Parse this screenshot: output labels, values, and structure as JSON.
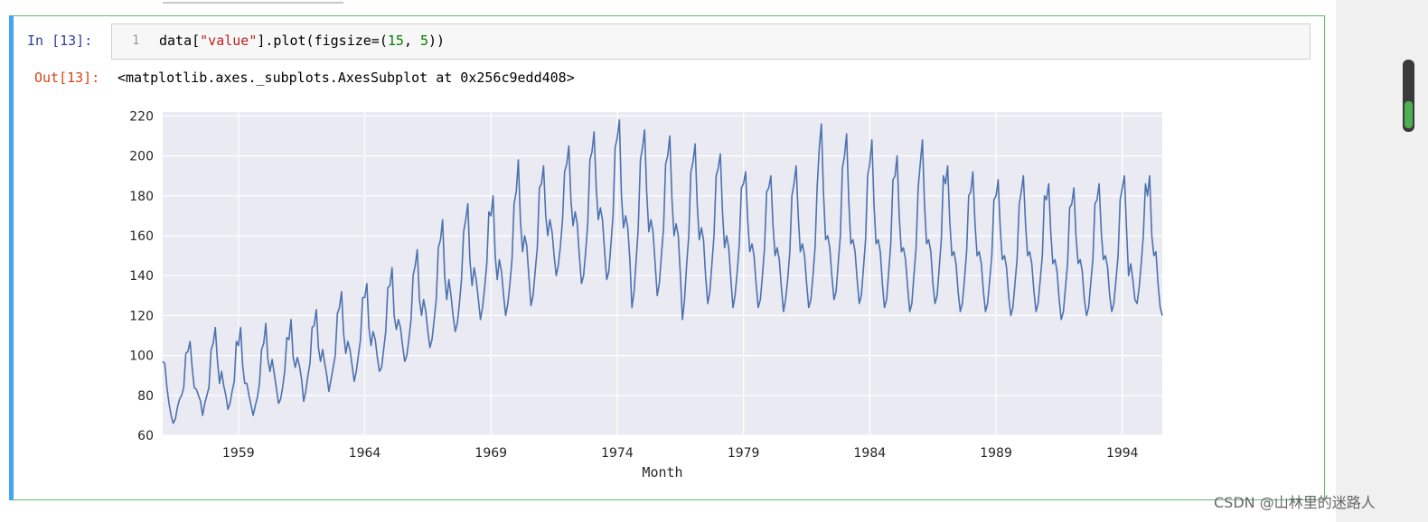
{
  "cell": {
    "in_prompt": "In  [13]:",
    "out_prompt": "Out[13]:",
    "line_number": "1",
    "code": {
      "part1": "data[",
      "string": "\"value\"",
      "part2": "].plot(figsize=(",
      "num1": "15",
      "sep": ", ",
      "num2": "5",
      "part3": "))"
    },
    "output_text": "<matplotlib.axes._subplots.AxesSubplot at 0x256c9edd408>"
  },
  "watermark": "CSDN @山林里的迷路人",
  "colors": {
    "line": "#4c72b0",
    "plot_bg": "#eaeaf2",
    "grid": "#ffffff"
  },
  "chart_data": {
    "type": "line",
    "title": "",
    "xlabel": "Month",
    "ylabel": "",
    "x_ticks": [
      "1959",
      "1964",
      "1969",
      "1974",
      "1979",
      "1984",
      "1989",
      "1994"
    ],
    "y_ticks": [
      "60",
      "80",
      "100",
      "120",
      "140",
      "160",
      "180",
      "200",
      "220"
    ],
    "ylim": [
      60,
      222
    ],
    "x_start": "1956-01",
    "x_end": "1995-08",
    "grid": true,
    "series": [
      {
        "values": [
          97,
          96,
          84,
          76,
          70,
          66,
          68,
          74,
          78,
          80,
          84,
          101,
          102,
          107,
          94,
          84,
          83,
          80,
          77,
          70,
          76,
          80,
          84,
          103,
          106,
          114,
          98,
          86,
          92,
          85,
          80,
          73,
          76,
          82,
          87,
          107,
          105,
          114,
          95,
          86,
          86,
          80,
          75,
          70,
          75,
          79,
          86,
          103,
          106,
          116,
          98,
          92,
          98,
          91,
          84,
          76,
          78,
          84,
          92,
          109,
          108,
          118,
          99,
          94,
          99,
          95,
          88,
          77,
          82,
          90,
          96,
          114,
          115,
          123,
          104,
          97,
          103,
          96,
          90,
          82,
          88,
          94,
          100,
          121,
          124,
          132,
          111,
          101,
          107,
          103,
          95,
          87,
          92,
          100,
          108,
          129,
          129,
          136,
          114,
          105,
          112,
          108,
          99,
          92,
          94,
          103,
          112,
          134,
          135,
          144,
          120,
          113,
          118,
          114,
          105,
          97,
          100,
          108,
          118,
          140,
          145,
          153,
          128,
          120,
          128,
          122,
          112,
          104,
          108,
          118,
          128,
          154,
          158,
          168,
          140,
          128,
          138,
          130,
          120,
          112,
          116,
          126,
          138,
          162,
          168,
          176,
          148,
          135,
          144,
          138,
          128,
          118,
          124,
          134,
          146,
          172,
          170,
          180,
          150,
          138,
          148,
          142,
          130,
          120,
          126,
          136,
          148,
          176,
          182,
          198,
          168,
          152,
          160,
          155,
          140,
          125,
          130,
          142,
          154,
          184,
          186,
          195,
          170,
          160,
          168,
          162,
          150,
          140,
          145,
          155,
          168,
          192,
          196,
          205,
          178,
          165,
          172,
          166,
          150,
          136,
          140,
          152,
          166,
          198,
          202,
          212,
          184,
          168,
          174,
          168,
          152,
          138,
          142,
          156,
          170,
          204,
          209,
          218,
          180,
          164,
          170,
          164,
          148,
          124,
          132,
          148,
          164,
          198,
          204,
          213,
          182,
          162,
          168,
          162,
          146,
          130,
          136,
          150,
          164,
          196,
          200,
          210,
          178,
          160,
          166,
          160,
          140,
          118,
          128,
          146,
          160,
          192,
          197,
          206,
          176,
          158,
          164,
          158,
          140,
          126,
          132,
          146,
          160,
          190,
          194,
          201,
          172,
          154,
          160,
          154,
          138,
          124,
          130,
          142,
          156,
          184,
          186,
          192,
          168,
          152,
          156,
          150,
          136,
          124,
          128,
          140,
          154,
          182,
          184,
          190,
          166,
          150,
          154,
          148,
          134,
          122,
          128,
          138,
          152,
          180,
          186,
          195,
          170,
          152,
          156,
          150,
          136,
          124,
          128,
          140,
          154,
          184,
          204,
          216,
          182,
          158,
          160,
          154,
          140,
          128,
          132,
          146,
          160,
          194,
          200,
          211,
          178,
          156,
          158,
          152,
          138,
          126,
          130,
          144,
          158,
          190,
          196,
          208,
          176,
          156,
          158,
          152,
          136,
          124,
          128,
          142,
          156,
          188,
          190,
          200,
          170,
          152,
          154,
          148,
          134,
          122,
          126,
          140,
          154,
          184,
          196,
          208,
          176,
          156,
          158,
          152,
          136,
          126,
          130,
          144,
          158,
          190,
          186,
          195,
          168,
          150,
          152,
          146,
          132,
          122,
          126,
          138,
          152,
          180,
          182,
          192,
          166,
          150,
          152,
          146,
          132,
          122,
          126,
          138,
          150,
          178,
          180,
          188,
          164,
          148,
          150,
          144,
          130,
          120,
          124,
          136,
          148,
          176,
          182,
          190,
          166,
          150,
          152,
          146,
          132,
          122,
          126,
          138,
          150,
          180,
          178,
          186,
          162,
          146,
          148,
          142,
          128,
          118,
          122,
          134,
          146,
          174,
          176,
          184,
          160,
          146,
          148,
          142,
          128,
          120,
          124,
          136,
          148,
          176,
          178,
          186,
          162,
          148,
          150,
          144,
          130,
          122,
          126,
          138,
          150,
          178,
          184,
          190,
          164,
          140,
          146,
          138,
          128,
          126,
          134,
          146,
          160,
          186,
          180,
          190,
          160,
          150,
          152,
          136,
          124,
          120
        ]
      }
    ]
  }
}
